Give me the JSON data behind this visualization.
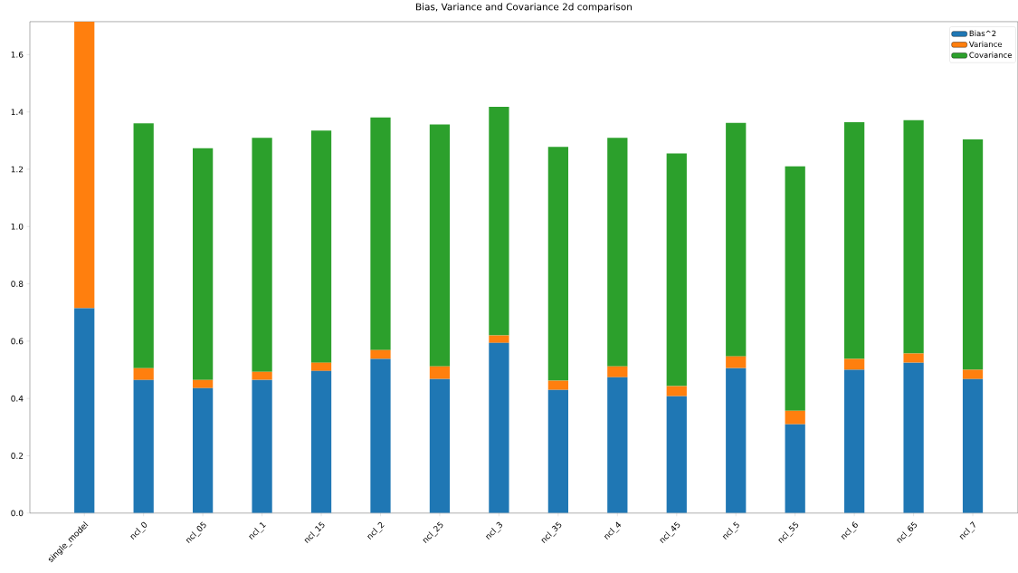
{
  "chart_data": {
    "type": "bar",
    "title": "Bias, Variance and Covariance 2d comparison",
    "stacked": true,
    "legend": "top right",
    "grid": false,
    "categories": [
      "single_model",
      "ncl_0",
      "ncl_05",
      "ncl_1",
      "ncl_15",
      "ncl_2",
      "ncl_25",
      "ncl_3",
      "ncl_35",
      "ncl_4",
      "ncl_45",
      "ncl_5",
      "ncl_55",
      "ncl_6",
      "ncl_65",
      "ncl_7"
    ],
    "series": [
      {
        "name": "Bias^2",
        "color": "#1f77b4",
        "values": [
          0.715,
          0.465,
          0.436,
          0.465,
          0.496,
          0.538,
          0.468,
          0.594,
          0.43,
          0.474,
          0.408,
          0.506,
          0.31,
          0.5,
          0.525,
          0.468
        ]
      },
      {
        "name": "Variance",
        "color": "#ff7f0e",
        "values": [
          1.0,
          0.041,
          0.029,
          0.028,
          0.029,
          0.031,
          0.044,
          0.026,
          0.032,
          0.038,
          0.035,
          0.041,
          0.047,
          0.038,
          0.032,
          0.032
        ]
      },
      {
        "name": "Covariance",
        "color": "#2ca02c",
        "values": [
          null,
          0.854,
          0.808,
          0.817,
          0.81,
          0.812,
          0.844,
          0.798,
          0.816,
          0.798,
          0.812,
          0.815,
          0.853,
          0.826,
          0.814,
          0.804
        ]
      }
    ],
    "ylim": [
      0,
      1.715
    ],
    "yticks": [
      {
        "value": 0,
        "label": "0.0"
      },
      {
        "value": 0.2,
        "label": "0.2"
      },
      {
        "value": 0.4,
        "label": "0.4"
      },
      {
        "value": 0.6,
        "label": "0.6"
      },
      {
        "value": 0.8,
        "label": "0.8"
      },
      {
        "value": 1.0,
        "label": "1.0"
      },
      {
        "value": 1.2,
        "label": "1.2"
      },
      {
        "value": 1.4,
        "label": "1.4"
      },
      {
        "value": 1.6,
        "label": "1.6"
      }
    ]
  }
}
